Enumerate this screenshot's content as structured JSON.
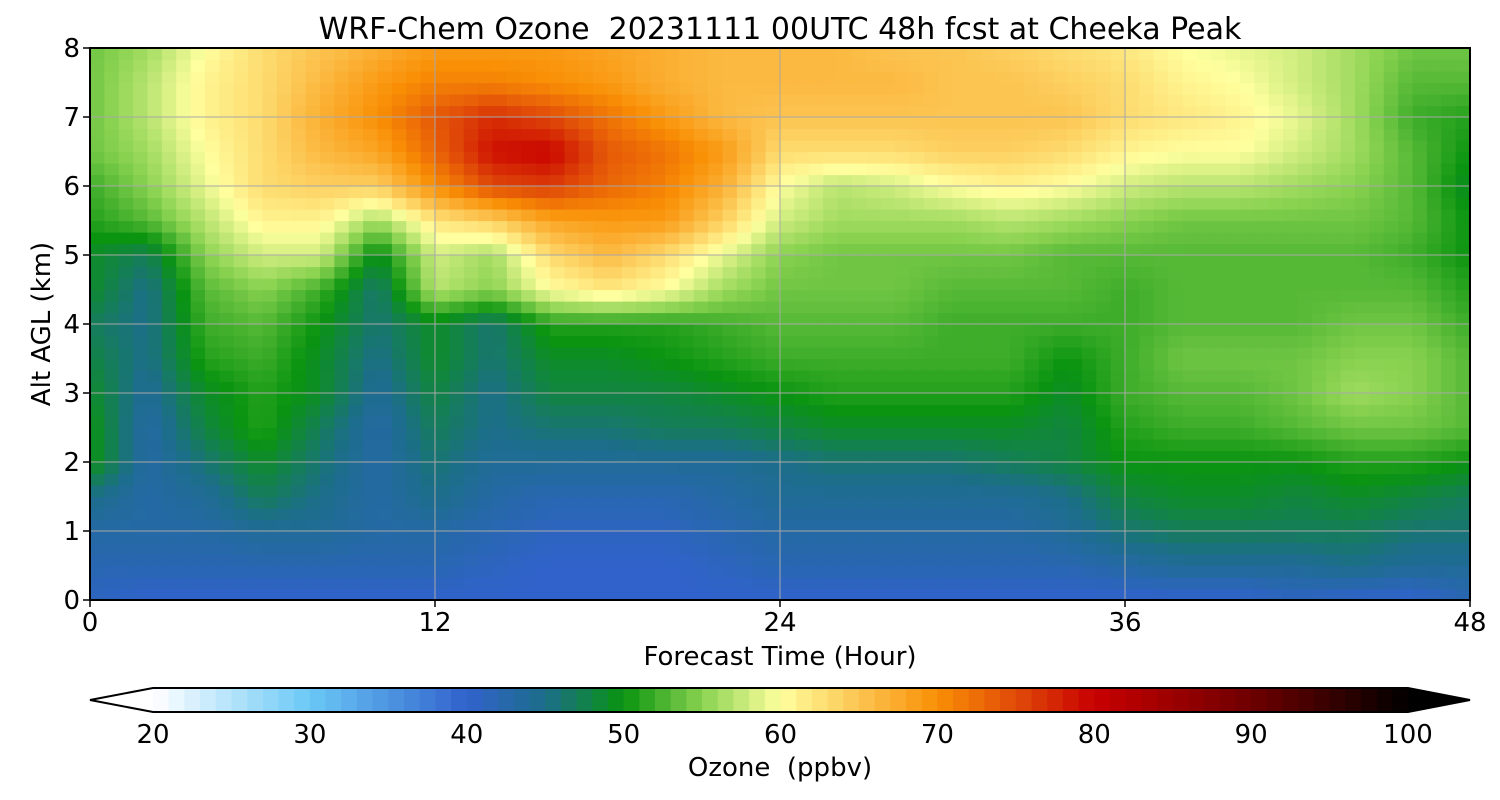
{
  "chart_data": {
    "type": "heatmap",
    "title": "WRF-Chem Ozone  20231111 00UTC 48h fcst at Cheeka Peak",
    "xlabel": "Forecast Time (Hour)",
    "ylabel": "Alt AGL (km)",
    "xlim": [
      0,
      48
    ],
    "ylim": [
      0,
      8
    ],
    "x_ticks": [
      0,
      12,
      24,
      36,
      48
    ],
    "y_ticks": [
      0,
      1,
      2,
      3,
      4,
      5,
      6,
      7,
      8
    ],
    "grid": true,
    "x_hours": [
      0,
      2,
      4,
      6,
      8,
      10,
      12,
      14,
      16,
      18,
      20,
      22,
      24,
      26,
      28,
      30,
      32,
      34,
      36,
      38,
      40,
      42,
      44,
      46,
      48
    ],
    "z_km": [
      0,
      0.5,
      1,
      1.5,
      2,
      2.5,
      3,
      3.5,
      4,
      4.5,
      5,
      5.5,
      6,
      6.5,
      7,
      7.5,
      8
    ],
    "values": [
      [
        41,
        40,
        40,
        40,
        40,
        40,
        40,
        40,
        40,
        40,
        40,
        40,
        40,
        40,
        40,
        40,
        40,
        40,
        40,
        40,
        40,
        41,
        40,
        40,
        42
      ],
      [
        42,
        42,
        42,
        42,
        42,
        42,
        42,
        41,
        40,
        40,
        40,
        41,
        42,
        42,
        42,
        42,
        42,
        42,
        43,
        44,
        44,
        44,
        45,
        44,
        44
      ],
      [
        43,
        43,
        43,
        44,
        44,
        43,
        43,
        42,
        41,
        41,
        41,
        42,
        43,
        43,
        43,
        43,
        43,
        44,
        46,
        47,
        47,
        47,
        47,
        46,
        46
      ],
      [
        45,
        43,
        44,
        47,
        45,
        43,
        45,
        43,
        42,
        42,
        42,
        43,
        44,
        44,
        44,
        44,
        44,
        45,
        48,
        49,
        49,
        48,
        49,
        48,
        47
      ],
      [
        50,
        43,
        46,
        49,
        46,
        43,
        46,
        44,
        44,
        44,
        44,
        44,
        45,
        46,
        46,
        46,
        47,
        48,
        50,
        50,
        50,
        50,
        51,
        51,
        50
      ],
      [
        50,
        43,
        48,
        51,
        47,
        43,
        47,
        45,
        46,
        46,
        47,
        47,
        48,
        49,
        49,
        49,
        49,
        48,
        51,
        52,
        52,
        53,
        54,
        54,
        53
      ],
      [
        49,
        44,
        49,
        51,
        49,
        44,
        48,
        45,
        48,
        48,
        48,
        49,
        50,
        51,
        51,
        51,
        51,
        49,
        52,
        53,
        53,
        54,
        56,
        55,
        53
      ],
      [
        48,
        45,
        51,
        52,
        49,
        45,
        49,
        46,
        49,
        49,
        50,
        51,
        52,
        52,
        52,
        52,
        52,
        50,
        52,
        54,
        54,
        54,
        55,
        55,
        53
      ],
      [
        47,
        45,
        52,
        53,
        50,
        46,
        49,
        46,
        51,
        51,
        51,
        52,
        53,
        53,
        53,
        52,
        52,
        52,
        52,
        53,
        53,
        53,
        54,
        54,
        52
      ],
      [
        49,
        45,
        53,
        55,
        52,
        46,
        57,
        55,
        60,
        62,
        60,
        56,
        54,
        54,
        54,
        53,
        53,
        53,
        52,
        53,
        53,
        53,
        53,
        53,
        51
      ],
      [
        49,
        47,
        55,
        58,
        58,
        49,
        58,
        56,
        63,
        66,
        63,
        59,
        55,
        54,
        54,
        54,
        54,
        53,
        53,
        53,
        53,
        53,
        53,
        52,
        50
      ],
      [
        51,
        53,
        57,
        61,
        61,
        56,
        62,
        64,
        68,
        69,
        69,
        64,
        58,
        56,
        56,
        56,
        57,
        56,
        55,
        54,
        54,
        54,
        54,
        53,
        50
      ],
      [
        52,
        55,
        59,
        63,
        64,
        64,
        70,
        75,
        76,
        73,
        71,
        67,
        60,
        57,
        58,
        60,
        61,
        60,
        58,
        57,
        57,
        56,
        55,
        53,
        49
      ],
      [
        54,
        56,
        60,
        63,
        66,
        68,
        73,
        79,
        80,
        74,
        72,
        69,
        63,
        63,
        63,
        64,
        64,
        63,
        61,
        60,
        60,
        58,
        56,
        53,
        50
      ],
      [
        54,
        57,
        61,
        63,
        67,
        70,
        74,
        77,
        75,
        72,
        69,
        66,
        65,
        65,
        65,
        65,
        65,
        65,
        63,
        62,
        61,
        59,
        56,
        52,
        51
      ],
      [
        54,
        57,
        61,
        63,
        66,
        69,
        71,
        71,
        70,
        69,
        67,
        66,
        66,
        66,
        66,
        65,
        65,
        64,
        63,
        61,
        60,
        58,
        56,
        53,
        53
      ],
      [
        54,
        56,
        60,
        63,
        65,
        67,
        69,
        69,
        69,
        68,
        67,
        66,
        66,
        66,
        65,
        65,
        64,
        63,
        62,
        60,
        59,
        58,
        56,
        54,
        54
      ]
    ]
  },
  "colorbar": {
    "label": "Ozone  (ppbv)",
    "min": 20,
    "max": 100,
    "ticks": [
      20,
      30,
      40,
      50,
      60,
      70,
      80,
      90,
      100
    ],
    "extend": "both",
    "stops": [
      {
        "v": 20,
        "c": "#ffffff"
      },
      {
        "v": 30,
        "c": "#6ac8f6"
      },
      {
        "v": 40,
        "c": "#3162cc"
      },
      {
        "v": 45,
        "c": "#1c6e8a"
      },
      {
        "v": 50,
        "c": "#0a9410"
      },
      {
        "v": 55,
        "c": "#89d250"
      },
      {
        "v": 60,
        "c": "#ffff9f"
      },
      {
        "v": 65,
        "c": "#fcc450"
      },
      {
        "v": 70,
        "c": "#f98f05"
      },
      {
        "v": 75,
        "c": "#e04a08"
      },
      {
        "v": 80,
        "c": "#c80000"
      },
      {
        "v": 90,
        "c": "#6e0000"
      },
      {
        "v": 100,
        "c": "#000000"
      }
    ]
  }
}
